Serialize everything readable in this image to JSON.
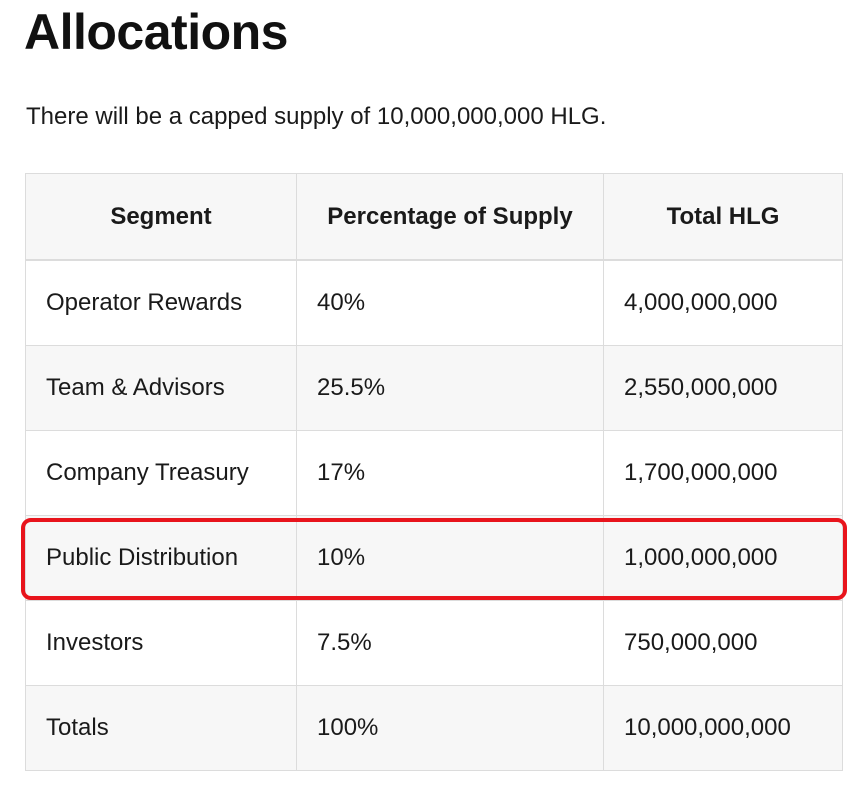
{
  "page": {
    "title": "Allocations",
    "intro": "There will be a capped supply of 10,000,000,000 HLG."
  },
  "table": {
    "headers": [
      "Segment",
      "Percentage of Supply",
      "Total HLG"
    ],
    "rows": [
      {
        "segment": "Operator Rewards",
        "percentage": "40%",
        "total": "4,000,000,000"
      },
      {
        "segment": "Team & Advisors",
        "percentage": "25.5%",
        "total": "2,550,000,000"
      },
      {
        "segment": "Company Treasury",
        "percentage": "17%",
        "total": "1,700,000,000"
      },
      {
        "segment": "Public Distribution",
        "percentage": "10%",
        "total": "1,000,000,000"
      },
      {
        "segment": "Investors",
        "percentage": "7.5%",
        "total": "750,000,000"
      },
      {
        "segment": "Totals",
        "percentage": "100%",
        "total": "10,000,000,000"
      }
    ],
    "highlighted_row": "Public Distribution"
  },
  "colors": {
    "highlight": "#e8141c",
    "header_bg": "#f7f7f7",
    "border": "#dcdcdc"
  }
}
